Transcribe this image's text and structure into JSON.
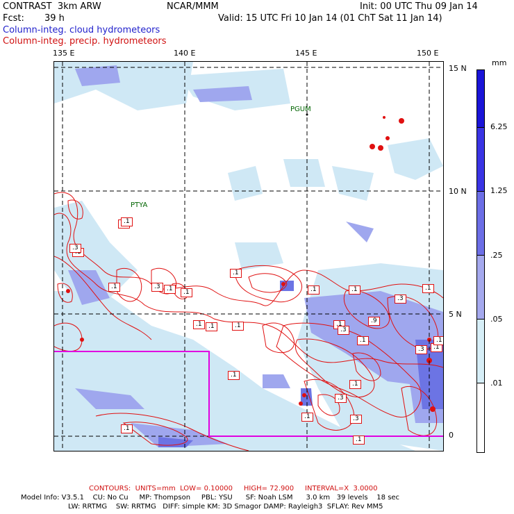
{
  "header": {
    "model": "CONTRAST  3km ARW",
    "center": "NCAR/MMM",
    "init": "Init: 00 UTC Thu 09 Jan 14",
    "fcst_label": "Fcst:",
    "fcst_value": "39 h",
    "valid": "Valid: 15 UTC Fri 10 Jan 14 (01 ChT Sat 11 Jan 14)"
  },
  "legend": {
    "cloud": "Column-integ. cloud hydrometeors",
    "precip": "Column-integ. precip. hydrometeors"
  },
  "map": {
    "lon_labels": [
      "135 E",
      "140 E",
      "145 E",
      "150 E"
    ],
    "lat_labels": [
      "15 N",
      "10 N",
      "5 N",
      "0"
    ],
    "place_labels": [
      "PGUM",
      "PTYA"
    ],
    "contour_labels": [
      ".1",
      ".1",
      ".1",
      ".1",
      ".1",
      ".1",
      ".1",
      ".1",
      ".1",
      ".1",
      ".1",
      ".1",
      ".1",
      ".1",
      ".1",
      ".1",
      ".1",
      ".1",
      ".1",
      ".1",
      ".3",
      ".3",
      ".3",
      ".3",
      ".3",
      ".3",
      ".3",
      ".9",
      ".1",
      ".1"
    ],
    "colors": {
      "cloud_fill_light": "#cfe8f5",
      "cloud_fill_mid": "#9fa7ee",
      "cloud_fill_dark": "#6c74e4",
      "contour": "#e01010",
      "box": "#e000e0",
      "place": "#006400"
    }
  },
  "colorbar": {
    "unit": "mm",
    "levels": [
      "6.25",
      "1.25",
      ".25",
      ".05",
      ".01"
    ],
    "colors": [
      "#1a14d8",
      "#3a34e4",
      "#6c6ee6",
      "#a5a9ee",
      "#d6eef7",
      "#ffffff"
    ]
  },
  "footer": {
    "contours": "CONTOURS:  UNITS=mm  LOW= 0.10000     HIGH= 72.900     INTERVAL=X  3.0000",
    "line1": "Model Info: V3.5.1    CU: No Cu     MP: Thompson     PBL: YSU      SF: Noah LSM      3.0 km   39 levels    18 sec",
    "line2": "LW: RRTMG    SW: RRTMG   DIFF: simple KM: 3D Smagor DAMP: Rayleigh3  SFLAY: Rev MM5"
  }
}
